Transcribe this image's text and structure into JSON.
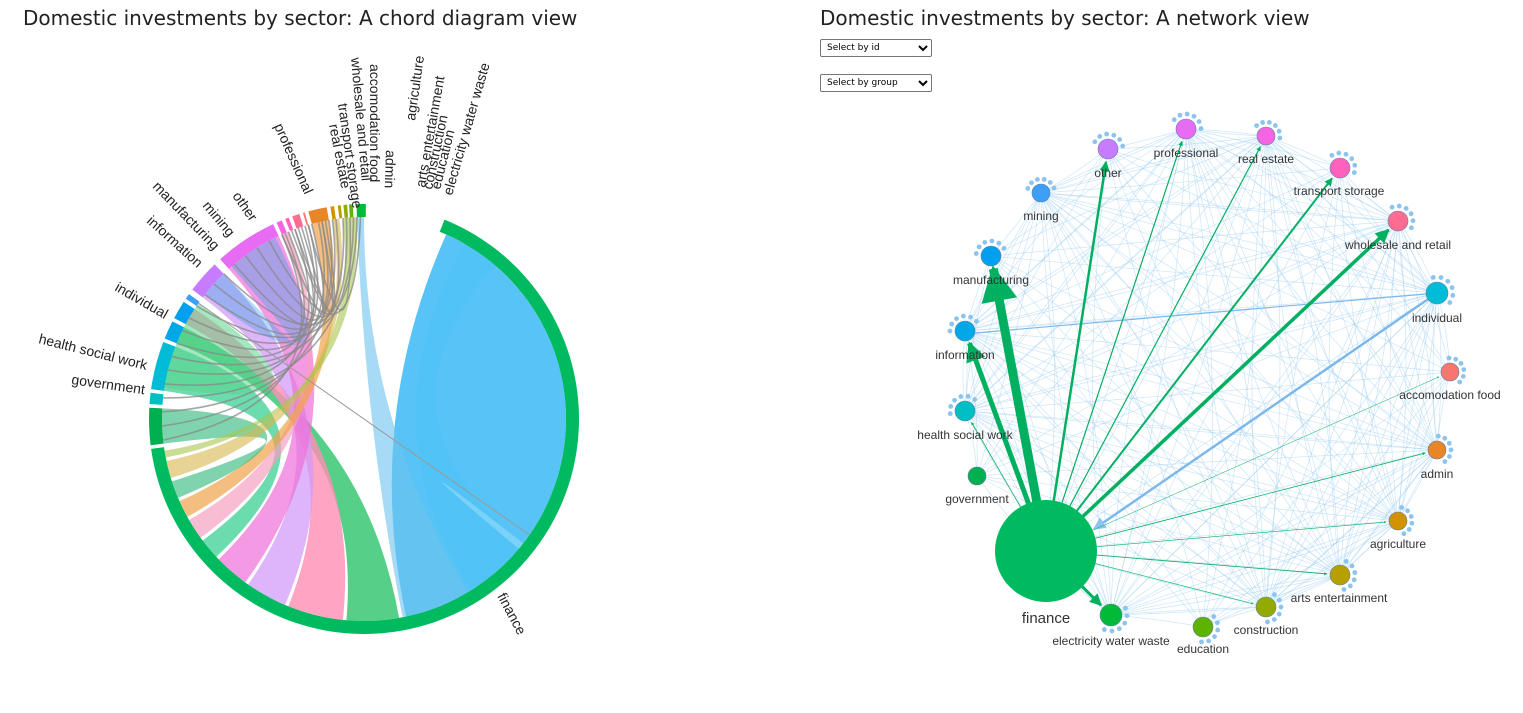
{
  "left": {
    "title": "Domestic investments by sector: A chord diagram view",
    "chord_labels": {
      "finance": "finance",
      "government": "government",
      "health_social_work": "health social work",
      "individual": "individual",
      "information": "information",
      "manufacturing": "manufacturing",
      "mining": "mining",
      "other": "other",
      "professional": "professional",
      "real_estate": "real estate",
      "transport_storage": "transport storage",
      "wholesale_and_retail": "wholesale and retail",
      "accomodation_food": "accomodation food",
      "admin": "admin",
      "agriculture": "agriculture",
      "arts_entertainment": "arts entertainment",
      "construction": "construction",
      "education": "education",
      "electricity_water_waste": "electricity water waste"
    }
  },
  "right": {
    "title": "Domestic investments by sector: A network view",
    "select_id": {
      "selected": "Select by id"
    },
    "select_group": {
      "selected": "Select by group"
    },
    "nodes": {
      "other": "other",
      "professional": "professional",
      "real_estate": "real estate",
      "transport_storage": "transport storage",
      "mining": "mining",
      "wholesale_and_retail": "wholesale and retail",
      "manufacturing": "manufacturing",
      "individual": "individual",
      "information": "information",
      "accomodation_food": "accomodation food",
      "health_social_work": "health social work",
      "admin": "admin",
      "government": "government",
      "agriculture": "agriculture",
      "arts_entertainment": "arts entertainment",
      "finance": "finance",
      "construction": "construction",
      "electricity_water_waste": "electricity water waste",
      "education": "education"
    }
  },
  "colors": {
    "finance": "#00BA60",
    "government": "#00B050",
    "health_social_work": "#00BFC4",
    "individual": "#00BCD6",
    "information": "#00A8E8",
    "manufacturing": "#00A0F0",
    "mining": "#3C9FF8",
    "other": "#C77CFF",
    "professional": "#E76BF3",
    "real_estate": "#F564E3",
    "transport_storage": "#FF62BC",
    "wholesale_and_retail": "#FF6C91",
    "accomodation_food": "#F8766D",
    "admin": "#E88526",
    "agriculture": "#D39200",
    "arts_entertainment": "#B79F00",
    "construction": "#93AA00",
    "education": "#5EB300",
    "electricity_water_waste": "#00BA38",
    "edge_light": "#90C8F0",
    "edge_strong": "#00B060"
  }
}
